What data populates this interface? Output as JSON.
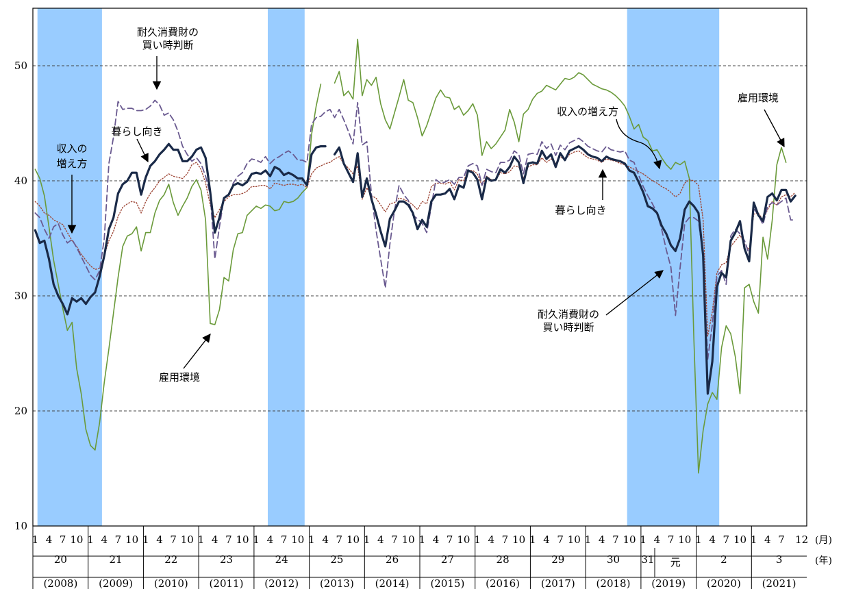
{
  "chart_data": {
    "type": "line",
    "ylim": [
      10,
      55
    ],
    "yticks": [
      10,
      20,
      30,
      40,
      50
    ],
    "x_start": "2008-01",
    "x_end": "2021-12",
    "grid": "horizontal dashed at 20, 30, 40, 50",
    "month_unit_label": "(月)",
    "year_unit_label": "(年)",
    "month_ticks": [
      "1",
      "4",
      "7",
      "10"
    ],
    "month_ticks_last": [
      "1",
      "4",
      "7",
      "12"
    ],
    "years": [
      {
        "era": "20",
        "western": "(2008)"
      },
      {
        "era": "21",
        "western": "(2009)"
      },
      {
        "era": "22",
        "western": "(2010)"
      },
      {
        "era": "23",
        "western": "(2011)"
      },
      {
        "era": "24",
        "western": "(2012)"
      },
      {
        "era": "25",
        "western": "(2013)"
      },
      {
        "era": "26",
        "western": "(2014)"
      },
      {
        "era": "27",
        "western": "(2015)"
      },
      {
        "era": "28",
        "western": "(2016)"
      },
      {
        "era": "29",
        "western": "(2017)"
      },
      {
        "era": "30",
        "western": "(2018)"
      },
      {
        "era": "31",
        "era2": "元",
        "western": "(2019)"
      },
      {
        "era": "2",
        "western": "(2020)"
      },
      {
        "era": "3",
        "western": "(2021)"
      }
    ],
    "shaded_periods": [
      {
        "from": "2008-02",
        "to": "2009-03"
      },
      {
        "from": "2012-04",
        "to": "2012-11"
      },
      {
        "from": "2018-10",
        "to": "2020-05"
      }
    ],
    "colors": {
      "shade": "#99ccff",
      "kurashi": "#1a2a48",
      "shunyu": "#a04a3a",
      "koyo": "#6a9a3a",
      "taikyu": "#6a5a90"
    },
    "series": [
      {
        "key": "kurashi",
        "values": [
          35.7,
          34.6,
          34.8,
          33.2,
          31.0,
          30.0,
          29.3,
          28.4,
          29.8,
          29.5,
          29.8,
          29.3,
          29.9,
          30.3,
          31.7,
          33.5,
          35.8,
          36.8,
          38.9,
          39.7,
          40.0,
          40.7,
          40.7,
          38.8,
          40.3,
          41.3,
          41.7,
          42.3,
          42.7,
          43.2,
          42.7,
          42.7,
          41.7,
          41.7,
          42.1,
          42.7,
          42.9,
          42.0,
          39.0,
          35.5,
          36.8,
          38.5,
          38.8,
          39.6,
          39.8,
          39.6,
          39.9,
          40.6,
          40.7,
          40.6,
          40.9,
          40.4,
          41.2,
          41.0,
          40.5,
          40.7,
          40.5,
          40.2,
          40.2,
          39.6,
          42.3,
          42.9,
          43.0,
          43.0,
          null,
          42.3,
          42.9,
          41.5,
          40.7,
          39.9,
          42.4,
          38.6,
          40.2,
          38.4,
          37.1,
          35.6,
          34.3,
          36.7,
          37.4,
          38.2,
          38.2,
          37.9,
          37.2,
          35.8,
          36.6,
          36.0,
          38.2,
          38.8,
          38.8,
          38.9,
          39.3,
          38.4,
          39.6,
          39.4,
          40.9,
          40.7,
          40.1,
          38.4,
          40.3,
          40.0,
          40.1,
          41.0,
          40.7,
          41.2,
          42.1,
          41.6,
          39.8,
          41.5,
          41.6,
          41.5,
          42.6,
          41.9,
          42.3,
          41.2,
          42.4,
          41.8,
          42.6,
          42.8,
          43.0,
          42.7,
          42.3,
          42.1,
          42.0,
          41.7,
          42.1,
          41.9,
          41.8,
          41.7,
          41.5,
          40.9,
          40.7,
          39.9,
          39.0,
          37.8,
          37.6,
          37.2,
          36.1,
          35.4,
          34.4,
          33.9,
          35.0,
          37.5,
          38.2,
          37.8,
          37.2,
          33.5,
          21.5,
          24.3,
          30.8,
          32.0,
          31.6,
          34.8,
          35.5,
          36.5,
          34.1,
          33.0,
          38.1,
          37.0,
          36.5,
          38.6,
          38.9,
          38.3,
          39.2,
          39.2,
          38.2,
          38.7
        ]
      },
      {
        "key": "shunyu",
        "values": [
          38.2,
          37.8,
          37.2,
          37.0,
          36.6,
          36.4,
          36.2,
          35.5,
          34.8,
          34.3,
          33.6,
          33.1,
          32.6,
          32.3,
          32.4,
          33.5,
          34.8,
          35.6,
          36.9,
          37.7,
          38.0,
          38.2,
          38.1,
          37.2,
          38.2,
          38.9,
          39.4,
          40.0,
          40.3,
          40.6,
          40.4,
          40.3,
          40.2,
          40.6,
          41.4,
          41.6,
          41.0,
          39.8,
          37.9,
          36.8,
          37.5,
          38.2,
          38.6,
          38.8,
          38.8,
          38.9,
          39.1,
          39.5,
          39.5,
          39.6,
          39.6,
          39.3,
          39.8,
          39.7,
          39.6,
          39.7,
          39.7,
          39.6,
          39.7,
          39.4,
          40.6,
          41.1,
          41.3,
          41.5,
          41.6,
          41.9,
          42.1,
          41.5,
          41.1,
          40.6,
          41.3,
          38.4,
          39.4,
          38.7,
          38.5,
          37.9,
          37.3,
          38.0,
          38.1,
          38.5,
          38.4,
          38.2,
          37.9,
          37.5,
          38.2,
          38.0,
          39.5,
          39.8,
          39.8,
          39.7,
          39.9,
          39.2,
          40.1,
          40.0,
          40.9,
          40.9,
          40.6,
          39.6,
          40.4,
          40.1,
          40.1,
          40.7,
          40.6,
          40.8,
          41.3,
          41.2,
          40.2,
          41.2,
          41.4,
          41.4,
          42.0,
          41.6,
          41.9,
          41.5,
          42.1,
          41.8,
          42.3,
          42.5,
          42.6,
          42.3,
          42.0,
          41.9,
          41.8,
          41.6,
          41.9,
          41.8,
          41.7,
          41.5,
          41.4,
          41.2,
          41.0,
          40.8,
          40.6,
          40.3,
          40.0,
          39.8,
          39.5,
          39.3,
          39.0,
          38.6,
          38.9,
          39.8,
          40.1,
          40.0,
          39.6,
          36.6,
          26.5,
          28.6,
          32.0,
          32.7,
          32.9,
          34.3,
          34.8,
          35.3,
          34.5,
          34.0,
          37.1,
          37.2,
          36.6,
          37.5,
          38.2,
          37.9,
          38.6,
          38.8,
          38.6,
          39.0
        ]
      },
      {
        "key": "koyo",
        "values": [
          41.0,
          40.2,
          38.7,
          36.0,
          33.1,
          31.0,
          28.9,
          27.0,
          27.7,
          23.7,
          21.5,
          18.4,
          17.0,
          16.6,
          19.0,
          22.5,
          25.4,
          28.5,
          31.6,
          34.3,
          35.2,
          35.4,
          36.0,
          33.9,
          35.5,
          35.5,
          37.2,
          38.3,
          38.8,
          39.7,
          38.1,
          37.0,
          37.8,
          38.5,
          39.5,
          40.1,
          39.2,
          36.6,
          27.6,
          27.5,
          28.8,
          31.6,
          31.3,
          34.0,
          35.4,
          35.5,
          37.0,
          37.4,
          37.8,
          37.6,
          37.9,
          37.8,
          37.4,
          37.5,
          38.2,
          38.1,
          38.2,
          38.5,
          39.0,
          39.4,
          44.0,
          46.5,
          48.4,
          null,
          null,
          48.5,
          49.5,
          47.4,
          47.8,
          47.1,
          52.3,
          47.4,
          48.8,
          48.3,
          49.0,
          46.7,
          45.3,
          44.5,
          45.9,
          47.3,
          48.8,
          47.0,
          46.8,
          45.5,
          43.9,
          44.8,
          46.0,
          47.2,
          47.9,
          47.3,
          47.2,
          46.2,
          46.5,
          45.7,
          46.1,
          46.7,
          45.7,
          42.2,
          43.4,
          42.8,
          43.2,
          43.8,
          44.4,
          46.2,
          45.1,
          43.4,
          45.8,
          46.2,
          47.1,
          47.6,
          47.8,
          48.3,
          48.1,
          47.9,
          48.4,
          48.9,
          48.8,
          49.0,
          49.4,
          49.2,
          48.8,
          48.4,
          48.2,
          48.0,
          47.9,
          47.7,
          47.4,
          47.0,
          46.5,
          45.6,
          44.5,
          44.9,
          43.8,
          43.5,
          42.6,
          42.7,
          42.0,
          41.4,
          41.0,
          41.6,
          41.4,
          41.7,
          40.2,
          26.2,
          14.6,
          18.3,
          20.6,
          21.6,
          21.0,
          25.5,
          27.4,
          26.7,
          24.7,
          21.5,
          30.7,
          31.0,
          29.5,
          28.5,
          35.1,
          33.2,
          36.6,
          41.4,
          42.9,
          41.6
        ]
      },
      {
        "key": "taikyu",
        "values": [
          37.2,
          36.8,
          35.8,
          35.0,
          36.0,
          36.3,
          35.3,
          34.6,
          34.9,
          34.2,
          33.4,
          32.6,
          31.8,
          31.4,
          32.2,
          35.0,
          41.5,
          43.8,
          46.9,
          46.2,
          46.3,
          46.3,
          46.1,
          46.1,
          46.2,
          46.5,
          47.0,
          46.6,
          45.7,
          45.9,
          45.3,
          44.3,
          43.0,
          42.3,
          41.7,
          42.0,
          41.5,
          40.4,
          38.8,
          33.2,
          36.0,
          38.5,
          38.8,
          39.8,
          40.4,
          40.7,
          41.5,
          41.9,
          41.8,
          41.6,
          42.1,
          41.5,
          41.9,
          42.1,
          42.4,
          42.6,
          42.3,
          41.8,
          41.8,
          41.6,
          44.9,
          45.5,
          45.6,
          46.0,
          46.2,
          45.5,
          46.2,
          45.3,
          44.3,
          43.2,
          46.8,
          43.1,
          43.4,
          38.8,
          35.7,
          33.2,
          30.7,
          34.5,
          37.4,
          39.6,
          38.8,
          38.3,
          37.0,
          36.7,
          36.3,
          35.5,
          37.8,
          40.1,
          39.8,
          39.9,
          40.1,
          39.7,
          40.3,
          40.3,
          41.3,
          41.5,
          41.3,
          39.6,
          41.0,
          40.8,
          40.7,
          41.6,
          41.6,
          41.8,
          42.6,
          42.3,
          40.6,
          42.3,
          42.4,
          42.3,
          43.4,
          42.8,
          43.2,
          42.2,
          43.1,
          42.7,
          43.3,
          43.5,
          43.7,
          43.4,
          43.0,
          42.8,
          42.6,
          42.5,
          43.0,
          42.7,
          42.6,
          42.5,
          42.6,
          41.8,
          41.6,
          40.5,
          39.5,
          38.7,
          38.0,
          37.2,
          35.8,
          34.0,
          32.5,
          28.3,
          32.4,
          36.3,
          36.8,
          36.8,
          36.5,
          33.5,
          24.5,
          27.5,
          31.7,
          32.2,
          31.0,
          35.2,
          35.8,
          35.4,
          34.8,
          33.6,
          37.6,
          37.0,
          36.2,
          37.8,
          38.1,
          37.9,
          38.2,
          38.5,
          36.6,
          36.6
        ]
      }
    ],
    "annotations": [
      {
        "key": "taikyu_left",
        "lines": [
          "耐久消費財の",
          "買い時判断"
        ]
      },
      {
        "key": "kurashi_left",
        "lines": [
          "暮らし向き"
        ]
      },
      {
        "key": "shunyu_left",
        "lines": [
          "収入の",
          "増え方"
        ]
      },
      {
        "key": "koyo_left",
        "lines": [
          "雇用環境"
        ]
      },
      {
        "key": "shunyu_right",
        "lines": [
          "収入の増え方"
        ]
      },
      {
        "key": "kurashi_right",
        "lines": [
          "暮らし向き"
        ]
      },
      {
        "key": "taikyu_right",
        "lines": [
          "耐久消費財の",
          "買い時判断"
        ]
      },
      {
        "key": "koyo_right",
        "lines": [
          "雇用環境"
        ]
      }
    ]
  }
}
